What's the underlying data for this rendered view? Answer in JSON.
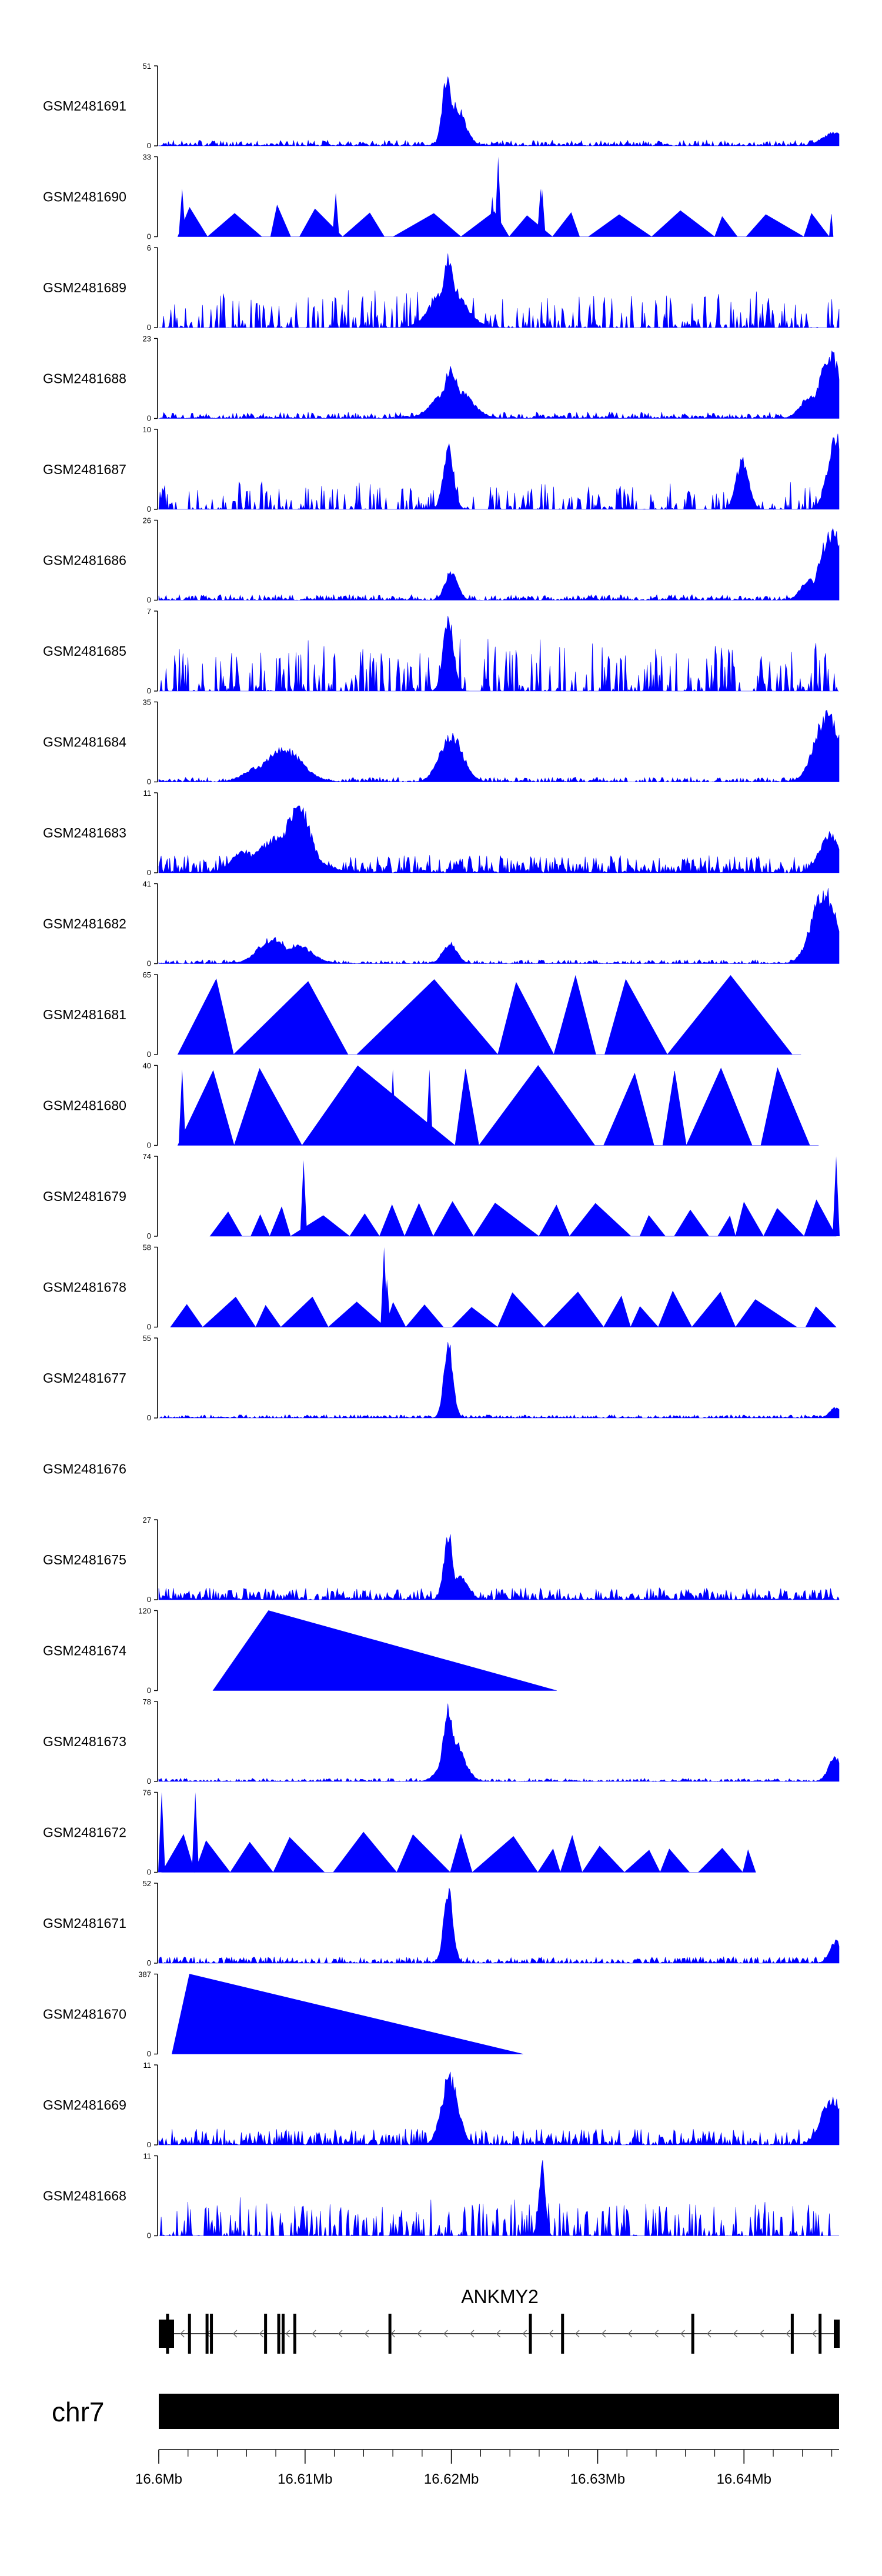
{
  "chart_data": {
    "type": "area",
    "colors": {
      "signal": "#0000ff",
      "axis": "#000000",
      "gene": "#000000",
      "chromosome_bar": "#000000"
    },
    "genome_axis": {
      "chromosome": "chr7",
      "xlim_mb": [
        16.6,
        16.6465
      ],
      "ticks": [
        {
          "value": 16.6,
          "label": "16.6Mb"
        },
        {
          "value": 16.61,
          "label": "16.61Mb"
        },
        {
          "value": 16.62,
          "label": "16.62Mb"
        },
        {
          "value": 16.63,
          "label": "16.63Mb"
        },
        {
          "value": 16.64,
          "label": "16.64Mb"
        }
      ],
      "minor_step_mb": 0.002
    },
    "gene": {
      "name": "ANKMY2",
      "start_mb": 16.6,
      "end_mb": 16.6465,
      "strand": "-",
      "exons_mb": [
        16.6006,
        16.6021,
        16.6033,
        16.6036,
        16.6073,
        16.6082,
        16.6085,
        16.6093,
        16.6158,
        16.6254,
        16.6276,
        16.6365,
        16.6433,
        16.6452
      ]
    },
    "tracks": [
      {
        "name": "GSM2481691",
        "ymax": "51",
        "ymin": "0",
        "style": "noise",
        "base": 0.07,
        "seed": 11,
        "peaks": [
          [
            16.6197,
            0.00045,
            1.0
          ],
          [
            16.6203,
            0.0009,
            0.55
          ],
          [
            16.6462,
            0.0012,
            0.18
          ]
        ]
      },
      {
        "name": "GSM2481690",
        "ymax": "33",
        "ymin": "0",
        "style": "tri",
        "base": 0.4,
        "seed": 5,
        "span": [
          16.6013,
          16.6461
        ],
        "spikes": [
          [
            16.6016,
            0.6
          ],
          [
            16.6121,
            0.55
          ],
          [
            16.6228,
            0.5
          ],
          [
            16.6232,
            1.0
          ],
          [
            16.6261,
            0.6
          ],
          [
            16.6262,
            0.6
          ]
        ]
      },
      {
        "name": "GSM2481689",
        "ymax": "6",
        "ymin": "0",
        "style": "noise",
        "base": 0.4,
        "seed": 21,
        "sparse": 0.55,
        "peaks": [
          [
            16.6198,
            0.0005,
            1.0
          ],
          [
            16.6198,
            0.0015,
            0.6
          ]
        ]
      },
      {
        "name": "GSM2481688",
        "ymax": "23",
        "ymin": "0",
        "style": "noise",
        "base": 0.08,
        "seed": 31,
        "peaks": [
          [
            16.62,
            0.0007,
            0.7
          ],
          [
            16.6201,
            0.0016,
            0.45
          ],
          [
            16.6459,
            0.001,
            0.9
          ],
          [
            16.6445,
            0.0009,
            0.3
          ]
        ]
      },
      {
        "name": "GSM2481687",
        "ymax": "10",
        "ymin": "0",
        "style": "noise",
        "base": 0.3,
        "seed": 41,
        "sparse": 0.6,
        "peaks": [
          [
            16.6198,
            0.0005,
            0.85
          ],
          [
            16.6463,
            0.0008,
            1.0
          ],
          [
            16.6399,
            0.0006,
            0.7
          ]
        ]
      },
      {
        "name": "GSM2481686",
        "ymax": "26",
        "ymin": "0",
        "style": "noise",
        "base": 0.07,
        "seed": 51,
        "peaks": [
          [
            16.62,
            0.0006,
            0.4
          ],
          [
            16.646,
            0.0011,
            0.95
          ],
          [
            16.6445,
            0.0008,
            0.3
          ]
        ]
      },
      {
        "name": "GSM2481685",
        "ymax": "7",
        "ymin": "0",
        "style": "noise",
        "base": 0.55,
        "seed": 61,
        "sparse": 0.5,
        "peaks": [
          [
            16.6198,
            0.0005,
            1.0
          ]
        ]
      },
      {
        "name": "GSM2481684",
        "ymax": "35",
        "ymin": "0",
        "style": "noise",
        "base": 0.06,
        "seed": 71,
        "peaks": [
          [
            16.6085,
            0.0018,
            0.45
          ],
          [
            16.6067,
            0.0012,
            0.2
          ],
          [
            16.62,
            0.0011,
            0.65
          ],
          [
            16.6457,
            0.0012,
            0.95
          ]
        ]
      },
      {
        "name": "GSM2481683",
        "ymax": "11",
        "ymin": "0",
        "style": "noise",
        "base": 0.22,
        "seed": 81,
        "peaks": [
          [
            16.6095,
            0.0012,
            0.95
          ],
          [
            16.6085,
            0.0025,
            0.5
          ],
          [
            16.6058,
            0.0012,
            0.3
          ],
          [
            16.6459,
            0.001,
            0.55
          ]
        ]
      },
      {
        "name": "GSM2481682",
        "ymax": "41",
        "ymin": "0",
        "style": "noise",
        "base": 0.05,
        "seed": 91,
        "peaks": [
          [
            16.6078,
            0.0014,
            0.35
          ],
          [
            16.6095,
            0.0014,
            0.25
          ],
          [
            16.6199,
            0.0007,
            0.28
          ],
          [
            16.6455,
            0.0012,
            1.0
          ]
        ]
      },
      {
        "name": "GSM2481681",
        "ymax": "65",
        "ymin": "0",
        "style": "tri",
        "base": 0,
        "seed": 101,
        "span": [
          16.6013,
          16.6433
        ],
        "spikes": []
      },
      {
        "name": "GSM2481680",
        "ymax": "40",
        "ymin": "0",
        "style": "tri",
        "base": 0,
        "seed": 111,
        "span": [
          16.6013,
          16.6445
        ],
        "spikes": [
          [
            16.6016,
            0.95
          ],
          [
            16.616,
            0.95
          ],
          [
            16.6185,
            0.95
          ]
        ]
      },
      {
        "name": "GSM2481679",
        "ymax": "74",
        "ymin": "0",
        "style": "tri",
        "base": 0.45,
        "seed": 121,
        "span": [
          16.6035,
          16.6463
        ],
        "spikes": [
          [
            16.6099,
            0.95
          ],
          [
            16.6463,
            1.0
          ]
        ]
      },
      {
        "name": "GSM2481678",
        "ymax": "58",
        "ymin": "0",
        "style": "tri",
        "base": 0.45,
        "seed": 131,
        "span": [
          16.6008,
          16.6463
        ],
        "spikes": [
          [
            16.6154,
            1.0
          ],
          [
            16.6156,
            0.6
          ]
        ]
      },
      {
        "name": "GSM2481677",
        "ymax": "55",
        "ymin": "0",
        "style": "noise",
        "base": 0.04,
        "seed": 141,
        "peaks": [
          [
            16.6198,
            0.00045,
            1.0
          ],
          [
            16.6463,
            0.0006,
            0.15
          ]
        ]
      },
      {
        "name": "GSM2481676",
        "ymax": "",
        "ymin": "",
        "style": "empty"
      },
      {
        "name": "GSM2481675",
        "ymax": "27",
        "ymin": "0",
        "style": "noise",
        "base": 0.15,
        "seed": 151,
        "peaks": [
          [
            16.6198,
            0.00045,
            0.9
          ],
          [
            16.6205,
            0.0008,
            0.35
          ]
        ]
      },
      {
        "name": "GSM2481674",
        "ymax": "120",
        "ymin": "0",
        "style": "ramp",
        "points_mb": [
          [
            16.6037,
            0.0
          ],
          [
            16.6075,
            1.0
          ],
          [
            16.6272,
            0.0
          ]
        ]
      },
      {
        "name": "GSM2481673",
        "ymax": "78",
        "ymin": "0",
        "style": "noise",
        "base": 0.04,
        "seed": 161,
        "peaks": [
          [
            16.6198,
            0.0005,
            1.0
          ],
          [
            16.6201,
            0.001,
            0.6
          ],
          [
            16.6462,
            0.0006,
            0.35
          ]
        ]
      },
      {
        "name": "GSM2481672",
        "ymax": "76",
        "ymin": "0",
        "style": "tri",
        "base": 0.5,
        "seed": 171,
        "span": [
          16.6002,
          16.6408
        ],
        "spikes": [
          [
            16.6002,
            1.0
          ],
          [
            16.6025,
            1.0
          ]
        ]
      },
      {
        "name": "GSM2481671",
        "ymax": "52",
        "ymin": "0",
        "style": "noise",
        "base": 0.08,
        "seed": 181,
        "peaks": [
          [
            16.6198,
            0.00045,
            1.0
          ],
          [
            16.6463,
            0.0006,
            0.3
          ]
        ]
      },
      {
        "name": "GSM2481670",
        "ymax": "387",
        "ymin": "0",
        "style": "ramp",
        "points_mb": [
          [
            16.6009,
            0.0
          ],
          [
            16.6021,
            1.0
          ],
          [
            16.6249,
            0.0
          ]
        ]
      },
      {
        "name": "GSM2481669",
        "ymax": "11",
        "ymin": "0",
        "style": "noise",
        "base": 0.2,
        "seed": 191,
        "peaks": [
          [
            16.6199,
            0.0008,
            0.95
          ],
          [
            16.646,
            0.001,
            0.65
          ]
        ]
      },
      {
        "name": "GSM2481668",
        "ymax": "11",
        "ymin": "0",
        "style": "noise",
        "base": 0.4,
        "seed": 201,
        "sparse": 0.55,
        "peaks": [
          [
            16.6262,
            0.0003,
            1.0
          ]
        ]
      }
    ]
  }
}
